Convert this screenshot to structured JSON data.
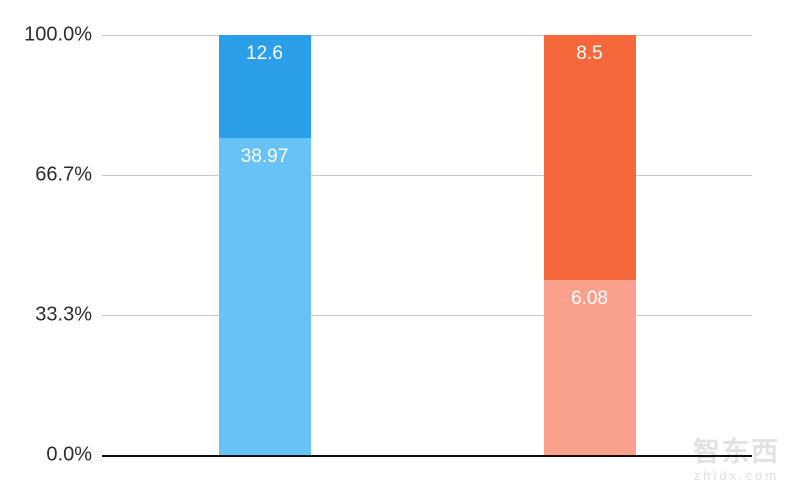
{
  "chart_data": {
    "type": "bar",
    "subtype": "stacked-100-percent",
    "title": "",
    "xlabel": "",
    "ylabel": "",
    "ylim": [
      0,
      100
    ],
    "grid": true,
    "legend": "none",
    "categories": [
      "",
      ""
    ],
    "y_ticks": [
      {
        "label": "100.0%",
        "value": 100
      },
      {
        "label": "66.7%",
        "value": 66.7
      },
      {
        "label": "33.3%",
        "value": 33.3
      },
      {
        "label": "0.0%",
        "value": 0
      }
    ],
    "bars": [
      {
        "segments": [
          {
            "label": "12.6",
            "value": 12.6,
            "color": "#2b9fe9"
          },
          {
            "label": "38.97",
            "value": 38.97,
            "color": "#67c2f5"
          }
        ]
      },
      {
        "segments": [
          {
            "label": "8.5",
            "value": 8.5,
            "color": "#f5683c"
          },
          {
            "label": "6.08",
            "value": 6.08,
            "color": "#f9a18c"
          }
        ]
      }
    ],
    "colors": {
      "gridline": "#c9c9c9",
      "axis_line": "#111111",
      "tick_text": "#2d2d2d",
      "data_label": "#ffffff"
    }
  },
  "watermark": {
    "logo": "智东西",
    "url": "zhidx.com"
  }
}
